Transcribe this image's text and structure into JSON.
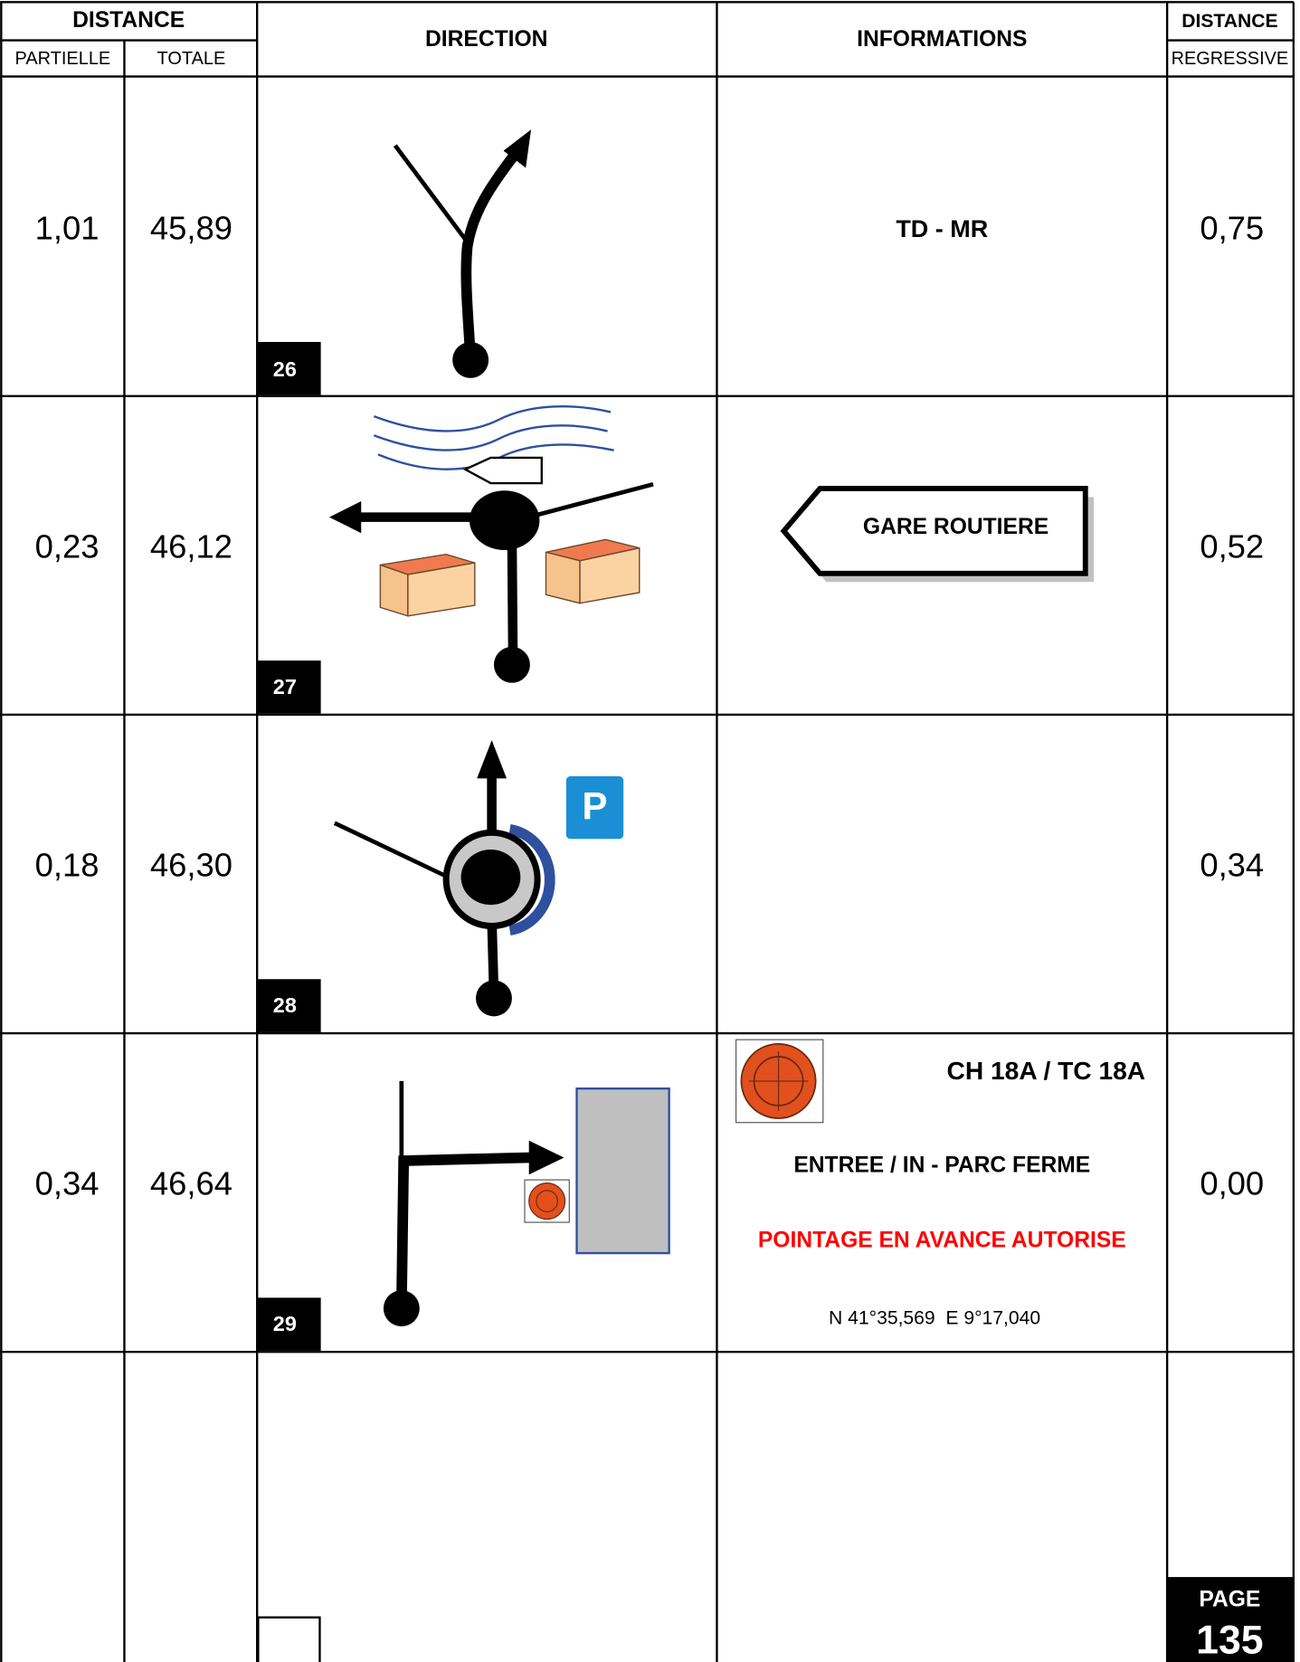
{
  "header": {
    "distance": "DISTANCE",
    "partielle": "PARTIELLE",
    "totale": "TOTALE",
    "direction": "DIRECTION",
    "informations": "INFORMATIONS",
    "distance_regressive": "DISTANCE",
    "regressive": "REGRESSIVE"
  },
  "rows": [
    {
      "partielle": "1,01",
      "totale": "45,89",
      "number": "26",
      "info": "TD - MR",
      "regressive": "0,75"
    },
    {
      "partielle": "0,23",
      "totale": "46,12",
      "number": "27",
      "sign": "GARE ROUTIERE",
      "regressive": "0,52"
    },
    {
      "partielle": "0,18",
      "totale": "46,30",
      "number": "28",
      "regressive": "0,34"
    },
    {
      "partielle": "0,34",
      "totale": "46,64",
      "number": "29",
      "control": "CH 18A / TC 18A",
      "entry": "ENTREE / IN - PARC FERME",
      "note": "POINTAGE EN AVANCE AUTORISE",
      "coordinates": "N 41°35,569  E 9°17,040",
      "regressive": "0,00"
    }
  ],
  "footer": {
    "page_label": "PAGE",
    "page_number": "135"
  }
}
